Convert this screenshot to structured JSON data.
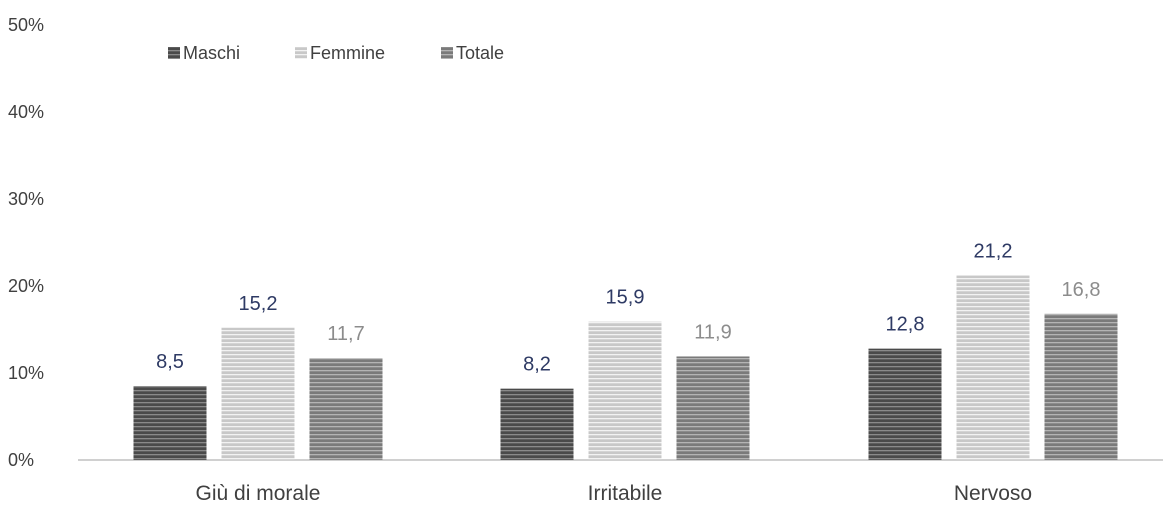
{
  "chart_data": {
    "type": "bar",
    "categories": [
      "Giù di morale",
      "Irritabile",
      "Nervoso"
    ],
    "series": [
      {
        "name": "Maschi",
        "values": [
          8.5,
          8.2,
          12.8
        ],
        "labels": [
          "8,5",
          "8,2",
          "12,8"
        ],
        "color": "#4a4a4a",
        "stripe": "#8a8a8a",
        "label_color": "#2e3a64"
      },
      {
        "name": "Femmine",
        "values": [
          15.2,
          15.9,
          21.2
        ],
        "labels": [
          "15,2",
          "15,9",
          "21,2"
        ],
        "color": "#c8c8c8",
        "stripe": "#f2f2f2",
        "label_color": "#2e3a64"
      },
      {
        "name": "Totale",
        "values": [
          11.7,
          11.9,
          16.8
        ],
        "labels": [
          "11,7",
          "11,9",
          "16,8"
        ],
        "color": "#7a7a7a",
        "stripe": "#b4b4b4",
        "label_color": "#8c8c8c"
      }
    ],
    "y_ticks": [
      "0%",
      "10%",
      "20%",
      "30%",
      "40%",
      "50%"
    ],
    "ylim": [
      0,
      50
    ],
    "grid": false,
    "legend_position": "top-left",
    "title": "",
    "xlabel": "",
    "ylabel": ""
  },
  "colors": {
    "axis_line": "#d0d0d0",
    "tick_text": "#404040",
    "category_text": "#404040"
  }
}
